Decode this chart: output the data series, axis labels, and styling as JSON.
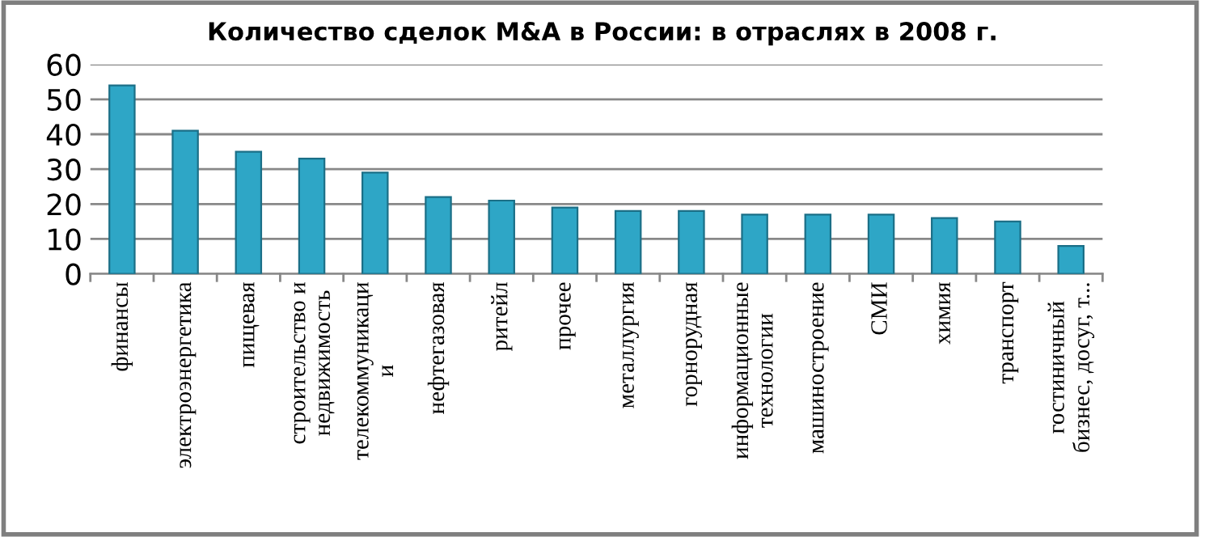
{
  "chart_data": {
    "type": "bar",
    "title": "Количество сделок M&A в России: в отраслях в 2008 г.",
    "categories": [
      "финансы",
      "электроэнергетика",
      "пищевая",
      "строительство и\nнедвижимость",
      "телекоммуникаци\nи",
      "нефтегазовая",
      "ритейл",
      "прочее",
      "металлургия",
      "горнорудная",
      "информационные\nтехнологии",
      "машиностроение",
      "СМИ",
      "химия",
      "транспорт",
      "гостиничный\nбизнес, досуг, т..."
    ],
    "values": [
      54,
      41,
      35,
      33,
      29,
      22,
      21,
      19,
      18,
      18,
      17,
      17,
      17,
      16,
      15,
      8
    ],
    "color": "#2ea6c6",
    "ylim": [
      0,
      60
    ],
    "yticks": [
      0,
      10,
      20,
      30,
      40,
      50,
      60
    ],
    "grid": "y"
  }
}
